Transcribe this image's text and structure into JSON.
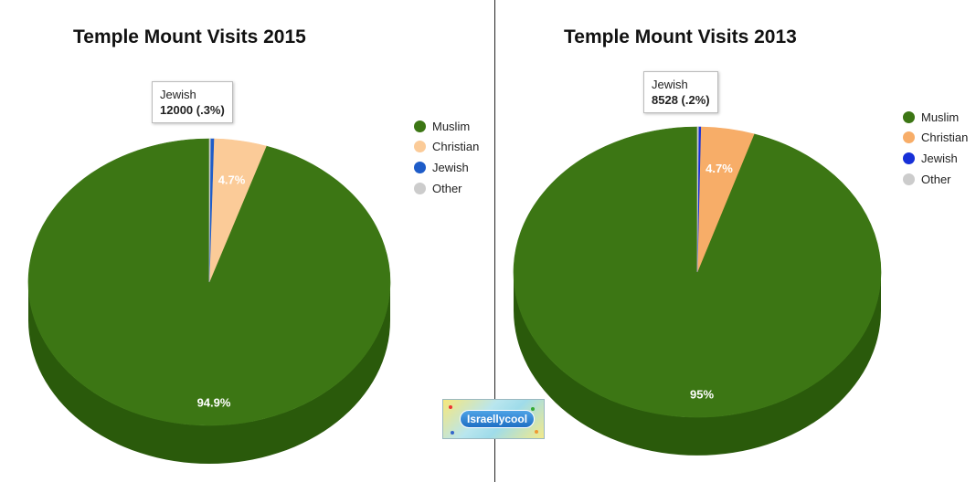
{
  "chart_data": [
    {
      "type": "pie",
      "title": "Temple Mount Visits 2015",
      "categories": [
        "Muslim",
        "Christian",
        "Jewish",
        "Other"
      ],
      "values": [
        94.9,
        4.7,
        0.3,
        0.1
      ],
      "slice_labels": [
        "94.9%",
        "4.7%",
        "",
        ""
      ],
      "colors": [
        "#3c7614",
        "#fbcb98",
        "#1e5cc8",
        "#cccccc"
      ],
      "side_colors": [
        "#2a5a0b",
        "#d7a77a",
        "#15409a",
        "#a8a8a8"
      ],
      "legend_position": "right",
      "tooltip": {
        "category": "Jewish",
        "value": "12000 (.3%)"
      }
    },
    {
      "type": "pie",
      "title": "Temple Mount Visits 2013",
      "categories": [
        "Muslim",
        "Christian",
        "Jewish",
        "Other"
      ],
      "values": [
        95,
        4.7,
        0.2,
        0.1
      ],
      "slice_labels": [
        "95%",
        "4.7%",
        "",
        ""
      ],
      "colors": [
        "#3c7614",
        "#f7ad68",
        "#1730d8",
        "#cccccc"
      ],
      "side_colors": [
        "#2a5a0b",
        "#d48e50",
        "#1020a8",
        "#a8a8a8"
      ],
      "legend_position": "right",
      "tooltip": {
        "category": "Jewish",
        "value": "8528 (.2%)"
      }
    }
  ],
  "watermark": {
    "text": "Israellycool"
  }
}
